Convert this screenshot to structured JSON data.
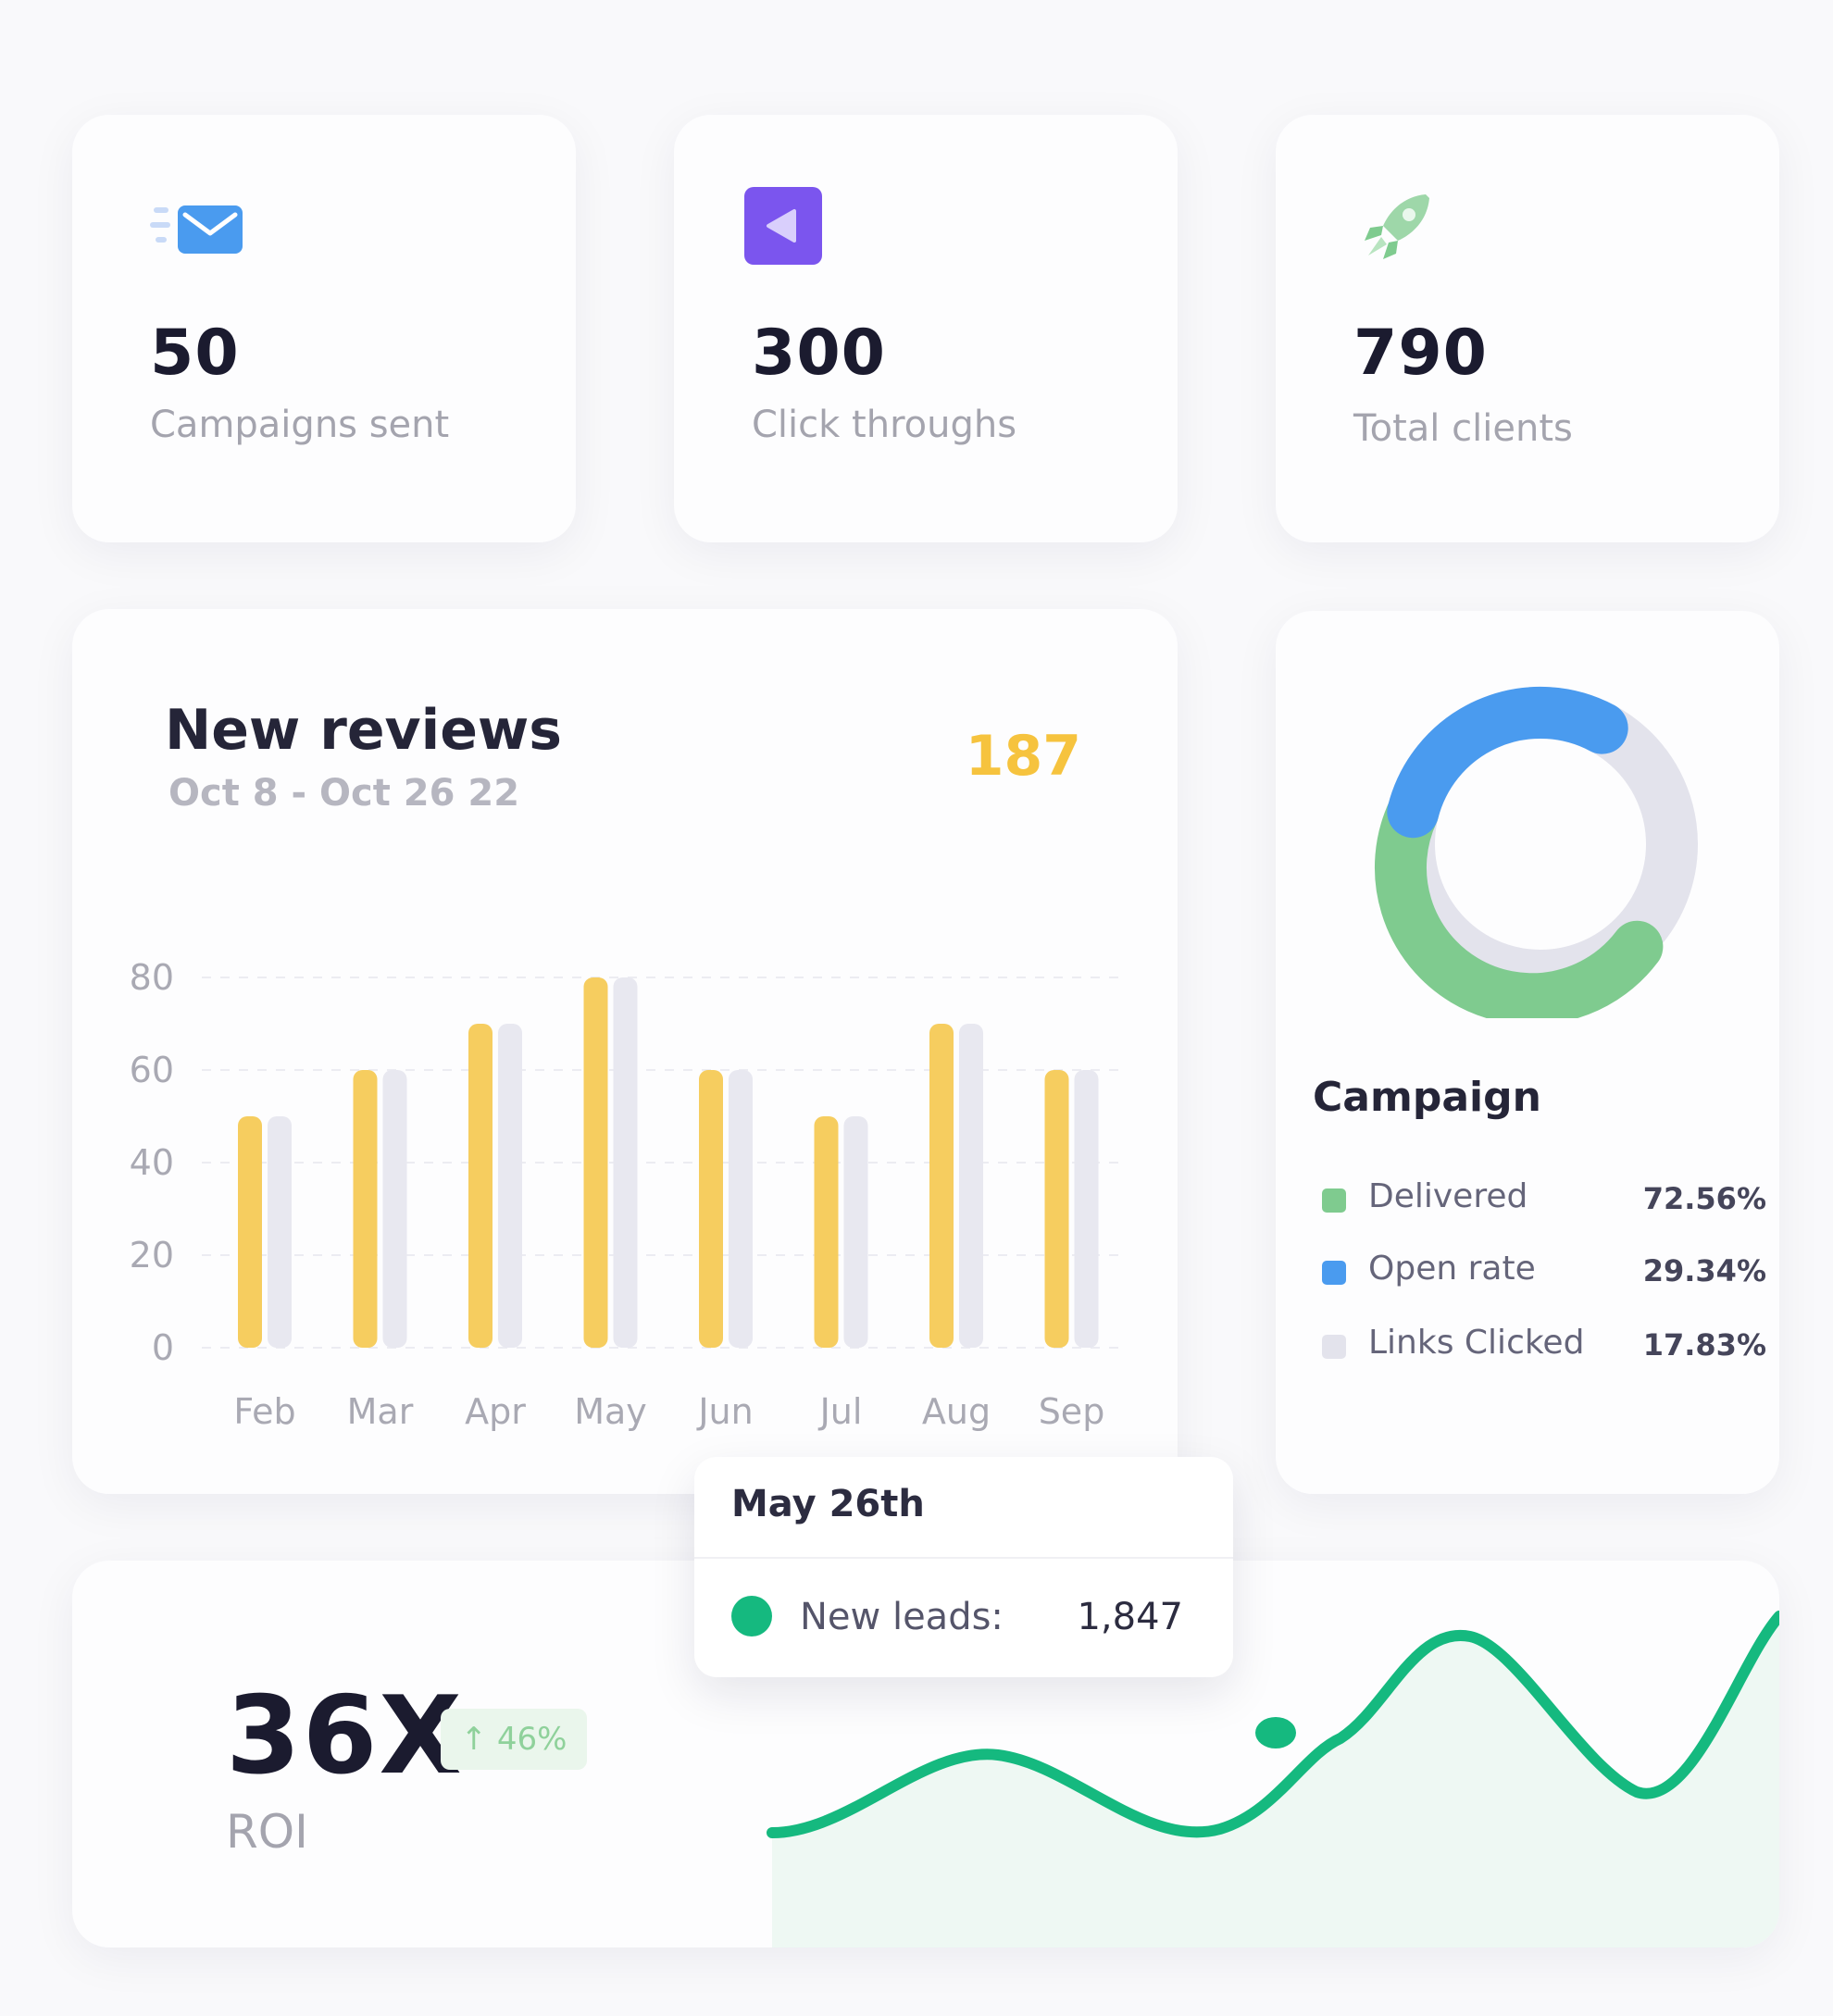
{
  "stats": [
    {
      "value": "50",
      "label": "Campaigns sent",
      "icon": "mail-icon"
    },
    {
      "value": "300",
      "label": "Click throughs",
      "icon": "play-back-icon"
    },
    {
      "value": "790",
      "label": "Total clients",
      "icon": "rocket-icon"
    }
  ],
  "reviews": {
    "title": "New reviews",
    "date_range": "Oct 8 - Oct 26 22",
    "total": "187"
  },
  "chart_data": {
    "type": "bar",
    "categories": [
      "Feb",
      "Mar",
      "Apr",
      "May",
      "Jun",
      "Jul",
      "Aug",
      "Sep"
    ],
    "series": [
      {
        "values": [
          50,
          60,
          70,
          80,
          60,
          50,
          70,
          60
        ],
        "color": "#f6cd5f"
      },
      {
        "values": [
          50,
          60,
          70,
          80,
          60,
          50,
          70,
          60
        ],
        "color": "#e8e8f0"
      }
    ],
    "yticks": [
      "80",
      "60",
      "40",
      "20",
      "0"
    ],
    "ylim": [
      0,
      80
    ],
    "grid": true
  },
  "campaign": {
    "title": "Campaign",
    "donut": {
      "segments": [
        {
          "name": "Delivered",
          "color": "#7fcb8f"
        },
        {
          "name": "Open rate",
          "color": "#4a9bef"
        },
        {
          "name": "Links Clicked",
          "color": "#e3e3ec"
        }
      ]
    },
    "legend": [
      {
        "name": "Delivered",
        "value": "72.56%",
        "color": "#7fcb8f"
      },
      {
        "name": "Open rate",
        "value": "29.34%",
        "color": "#4a9bef"
      },
      {
        "name": "Links Clicked",
        "value": "17.83%",
        "color": "#e3e3ec"
      }
    ]
  },
  "roi": {
    "value": "36X",
    "change": "↑ 46%",
    "label": "ROI",
    "line_color": "#15b97f"
  },
  "tooltip": {
    "title": "May 26th",
    "label": "New leads:",
    "value": "1,847"
  }
}
